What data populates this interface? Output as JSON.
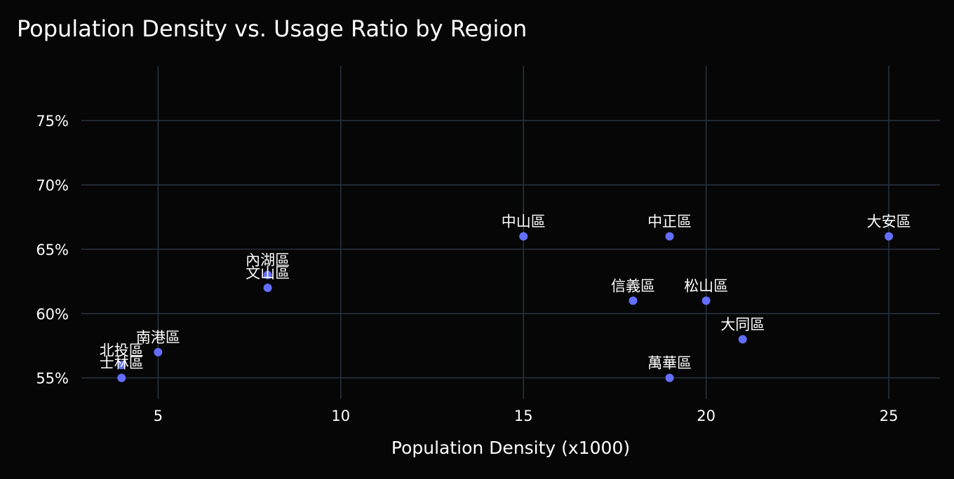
{
  "chart_data": {
    "type": "scatter",
    "title": "Population Density vs. Usage Ratio by Region",
    "xlabel": "Population Density (x1000)",
    "ylabel": "",
    "xlim": [
      2.9,
      26.4
    ],
    "ylim": [
      0.5335,
      0.7925
    ],
    "x_ticks": [
      5,
      10,
      15,
      20,
      25
    ],
    "x_tick_labels": [
      "5",
      "10",
      "15",
      "20",
      "25"
    ],
    "y_ticks": [
      0.55,
      0.6,
      0.65,
      0.7,
      0.75
    ],
    "y_tick_labels": [
      "55%",
      "60%",
      "65%",
      "70%",
      "75%"
    ],
    "grid": true,
    "legend": "none",
    "colors": {
      "background": "#060606",
      "grid": "#283442",
      "marker": "#636efa",
      "text": "#ffffff"
    },
    "points": [
      {
        "label": "中山區",
        "x": 15,
        "y": 0.66
      },
      {
        "label": "中正區",
        "x": 19,
        "y": 0.66
      },
      {
        "label": "大安區",
        "x": 25,
        "y": 0.66
      },
      {
        "label": "內湖區",
        "x": 8,
        "y": 0.63
      },
      {
        "label": "文山區",
        "x": 8,
        "y": 0.62
      },
      {
        "label": "信義區",
        "x": 18,
        "y": 0.61
      },
      {
        "label": "松山區",
        "x": 20,
        "y": 0.61
      },
      {
        "label": "大同區",
        "x": 21,
        "y": 0.58
      },
      {
        "label": "南港區",
        "x": 5,
        "y": 0.57
      },
      {
        "label": "北投區",
        "x": 4,
        "y": 0.56
      },
      {
        "label": "士林區",
        "x": 4,
        "y": 0.55
      },
      {
        "label": "萬華區",
        "x": 19,
        "y": 0.55
      }
    ]
  }
}
